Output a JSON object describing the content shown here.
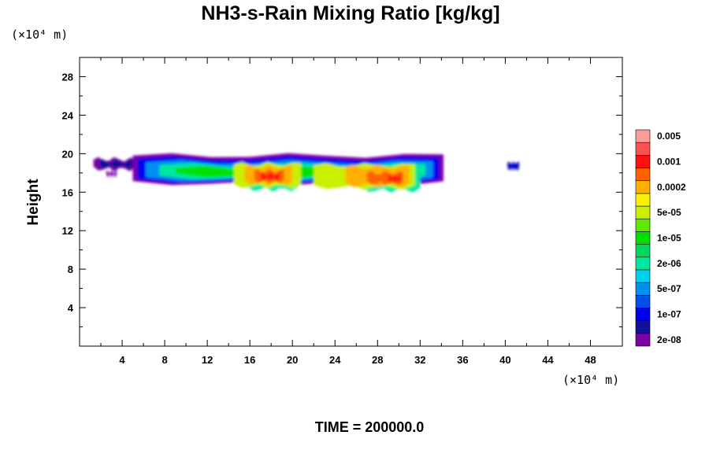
{
  "chart_data": {
    "type": "heatmap",
    "title": "NH3-s-Rain Mixing Ratio [kg/kg]",
    "ylabel": "Height",
    "x_unit": "(×10⁴ m)",
    "y_unit": "(×10⁴ m)",
    "time_label": "TIME = 200000.0",
    "xlim": [
      0,
      51
    ],
    "ylim": [
      0,
      30
    ],
    "x_ticks": [
      "4",
      "8",
      "12",
      "16",
      "20",
      "24",
      "28",
      "32",
      "36",
      "40",
      "44",
      "48"
    ],
    "y_ticks": [
      "4",
      "8",
      "12",
      "16",
      "20",
      "24",
      "28"
    ],
    "colorbar": {
      "colors": [
        "#7a00a8",
        "#10109a",
        "#0000ee",
        "#0050f0",
        "#0090f0",
        "#00d0f0",
        "#00e8a0",
        "#00d860",
        "#00e000",
        "#60e800",
        "#c8f000",
        "#f8f000",
        "#ffb000",
        "#ff6000",
        "#ff1010",
        "#ff5050",
        "#ff9a9a"
      ],
      "labels": [
        "2e-08",
        "1e-07",
        "5e-07",
        "2e-06",
        "1e-05",
        "5e-05",
        "0.0002",
        "0.001",
        "0.005"
      ]
    }
  }
}
